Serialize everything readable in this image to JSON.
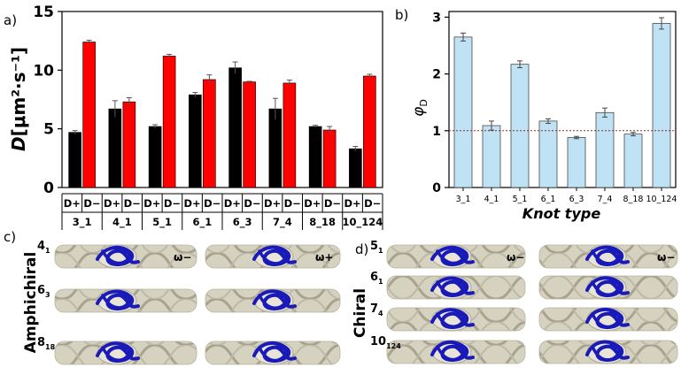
{
  "panels": {
    "a": "a)",
    "b": "b)",
    "c": "c)",
    "d": "d)"
  },
  "chart_data": [
    {
      "type": "bar",
      "panel": "a",
      "title": "",
      "ylabel_main": "D",
      "ylabel_unit": "[μm²·s⁻¹]",
      "ylim": [
        0,
        15
      ],
      "yticks": [
        0,
        5,
        10,
        15
      ],
      "categories": [
        "3_1",
        "4_1",
        "5_1",
        "6_1",
        "6_3",
        "7_4",
        "8_18",
        "10_124"
      ],
      "sublabels": [
        "D+",
        "D−"
      ],
      "series": [
        {
          "name": "D+",
          "color": "#000000",
          "values": [
            4.7,
            6.7,
            5.2,
            7.9,
            10.2,
            6.7,
            5.2,
            3.3
          ],
          "errors": [
            0.15,
            0.7,
            0.15,
            0.2,
            0.5,
            0.9,
            0.1,
            0.2
          ]
        },
        {
          "name": "D−",
          "color": "#ff0000",
          "values": [
            12.4,
            7.3,
            11.2,
            9.2,
            9.0,
            8.9,
            4.9,
            9.5
          ],
          "errors": [
            0.15,
            0.35,
            0.15,
            0.4,
            0.05,
            0.25,
            0.3,
            0.15
          ]
        }
      ]
    },
    {
      "type": "bar",
      "panel": "b",
      "title": "",
      "xlabel": "Knot type",
      "ylabel": "φ",
      "ylabel_sub": "D",
      "ylim": [
        0,
        3.1
      ],
      "yticks": [
        0,
        1,
        2,
        3
      ],
      "reference_line": 1,
      "color": "#bfe3f5",
      "categories": [
        "3_1",
        "4_1",
        "5_1",
        "6_1",
        "6_3",
        "7_4",
        "8_18",
        "10_124"
      ],
      "values": [
        2.65,
        1.09,
        2.17,
        1.17,
        0.88,
        1.32,
        0.94,
        2.89
      ],
      "errors": [
        0.07,
        0.08,
        0.06,
        0.04,
        0.02,
        0.08,
        0.03,
        0.1
      ]
    }
  ],
  "knot_panels": {
    "amphichiral": {
      "label": "Amphichiral",
      "rows": [
        {
          "label_base": "4",
          "label_sub": "1",
          "omega": "ω−",
          "omega_right": "ω+"
        },
        {
          "label_base": "6",
          "label_sub": "3",
          "omega": "",
          "omega_right": ""
        },
        {
          "label_base": "8",
          "label_sub": "18",
          "omega": "",
          "omega_right": ""
        }
      ]
    },
    "chiral": {
      "label": "Chiral",
      "rows": [
        {
          "label_base": "5",
          "label_sub": "1",
          "omega": "ω−",
          "omega_right": "ω−"
        },
        {
          "label_base": "6",
          "label_sub": "1",
          "omega": "",
          "omega_right": ""
        },
        {
          "label_base": "7",
          "label_sub": "4",
          "omega": "",
          "omega_right": ""
        },
        {
          "label_base": "10",
          "label_sub": "124",
          "omega": "",
          "omega_right": ""
        }
      ]
    }
  },
  "colors": {
    "rope": "#c9c5b3",
    "rope_dark": "#a39f8b",
    "knot": "#1a1ab8",
    "refline": "#8b2a2a"
  }
}
